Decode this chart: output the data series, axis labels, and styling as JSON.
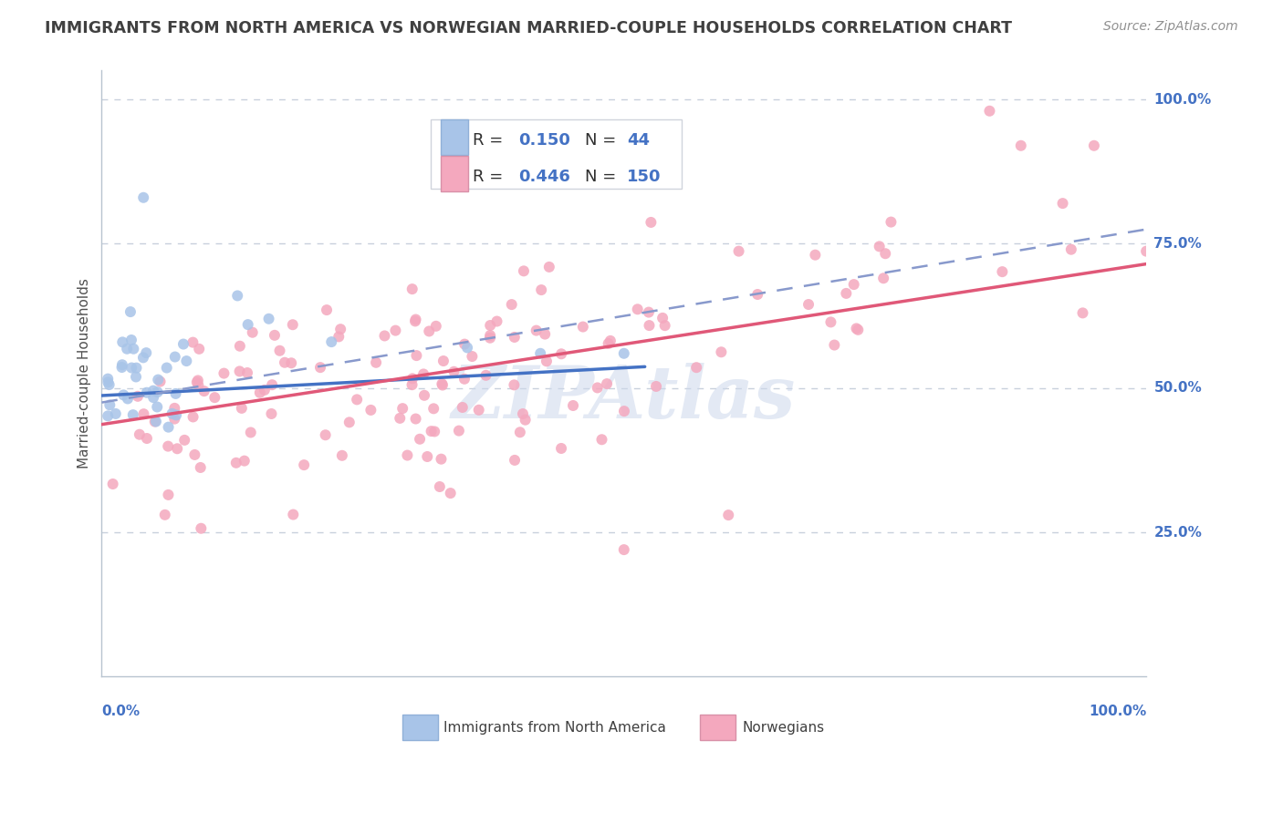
{
  "title": "IMMIGRANTS FROM NORTH AMERICA VS NORWEGIAN MARRIED-COUPLE HOUSEHOLDS CORRELATION CHART",
  "source": "Source: ZipAtlas.com",
  "ylabel": "Married-couple Households",
  "y_ticks": [
    "25.0%",
    "50.0%",
    "75.0%",
    "100.0%"
  ],
  "y_tick_vals": [
    0.25,
    0.5,
    0.75,
    1.0
  ],
  "background_color": "#ffffff",
  "scatter_color_blue": "#a8c4e8",
  "scatter_color_pink": "#f4a8be",
  "line_color_blue": "#4472c4",
  "line_color_pink": "#e05878",
  "line_color_dashed": "#8899cc",
  "grid_color": "#c8d0dc",
  "title_color": "#404040",
  "axis_label_color": "#4472c4",
  "legend_R_N_color": "#4472c4",
  "watermark_color": "#ccd8ec",
  "watermark_text": "ZIPAtlas",
  "blue_line": {
    "x0": 0.0,
    "x1": 0.52,
    "y0": 0.487,
    "y1": 0.537
  },
  "pink_line": {
    "x0": 0.0,
    "x1": 1.0,
    "y0": 0.437,
    "y1": 0.715
  },
  "dashed_line": {
    "x0": 0.0,
    "x1": 1.0,
    "y0": 0.475,
    "y1": 0.775
  },
  "xlim": [
    0.0,
    1.0
  ],
  "ylim": [
    0.0,
    1.05
  ],
  "legend_entry1_label": "Immigrants from North America",
  "legend_entry1_R": "0.150",
  "legend_entry1_N": "44",
  "legend_entry2_label": "Norwegians",
  "legend_entry2_R": "0.446",
  "legend_entry2_N": "150"
}
